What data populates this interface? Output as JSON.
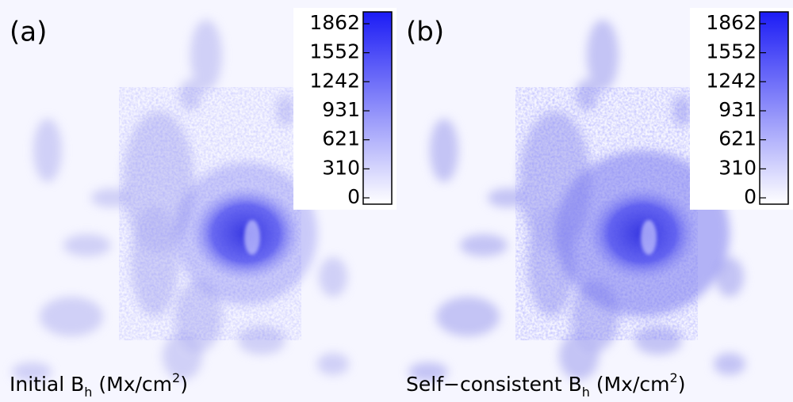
{
  "panels": [
    {
      "label": "(a)",
      "caption": {
        "text": "Initial B",
        "subscript": "h",
        "unit": " (Mx/cm",
        "superscript": "2",
        "close": ")"
      },
      "colorbar": {
        "clim": [
          0,
          1862
        ],
        "ticks": [
          0,
          310,
          621,
          931,
          1242,
          1552,
          1862
        ],
        "colors": [
          "#ffffff",
          "#1c1cf5"
        ]
      }
    },
    {
      "label": "(b)",
      "caption": {
        "text": "Self−consistent B",
        "subscript": "h",
        "unit": " (Mx/cm",
        "superscript": "2",
        "close": ")"
      },
      "colorbar": {
        "clim": [
          0,
          1862
        ],
        "ticks": [
          0,
          310,
          621,
          931,
          1242,
          1552,
          1862
        ],
        "colors": [
          "#ffffff",
          "#1c1cf5"
        ]
      }
    }
  ]
}
